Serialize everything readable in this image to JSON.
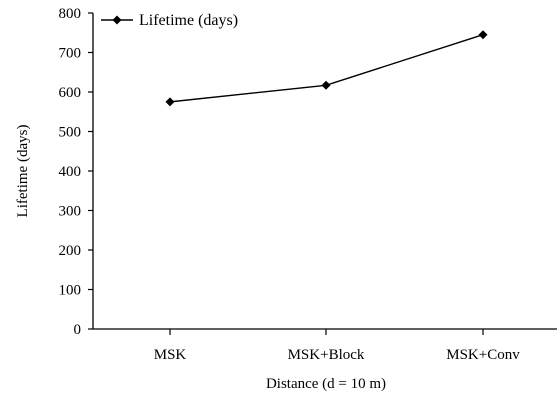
{
  "chart_data": {
    "type": "line",
    "title": "",
    "xlabel": "Distance (d = 10 m)",
    "ylabel": "Lifetime (days)",
    "categories": [
      "MSK",
      "MSK+Block",
      "MSK+Conv"
    ],
    "series": [
      {
        "name": "Lifetime (days)",
        "values": [
          575,
          617,
          745
        ]
      }
    ],
    "ylim": [
      0,
      800
    ],
    "yticks": [
      "0",
      "100",
      "200",
      "300",
      "400",
      "500",
      "600",
      "700",
      "800"
    ],
    "grid": false,
    "legend": "top-left",
    "marker": "diamond",
    "colors": {
      "line": "#000000",
      "marker": "#000000",
      "axis": "#000000"
    }
  }
}
